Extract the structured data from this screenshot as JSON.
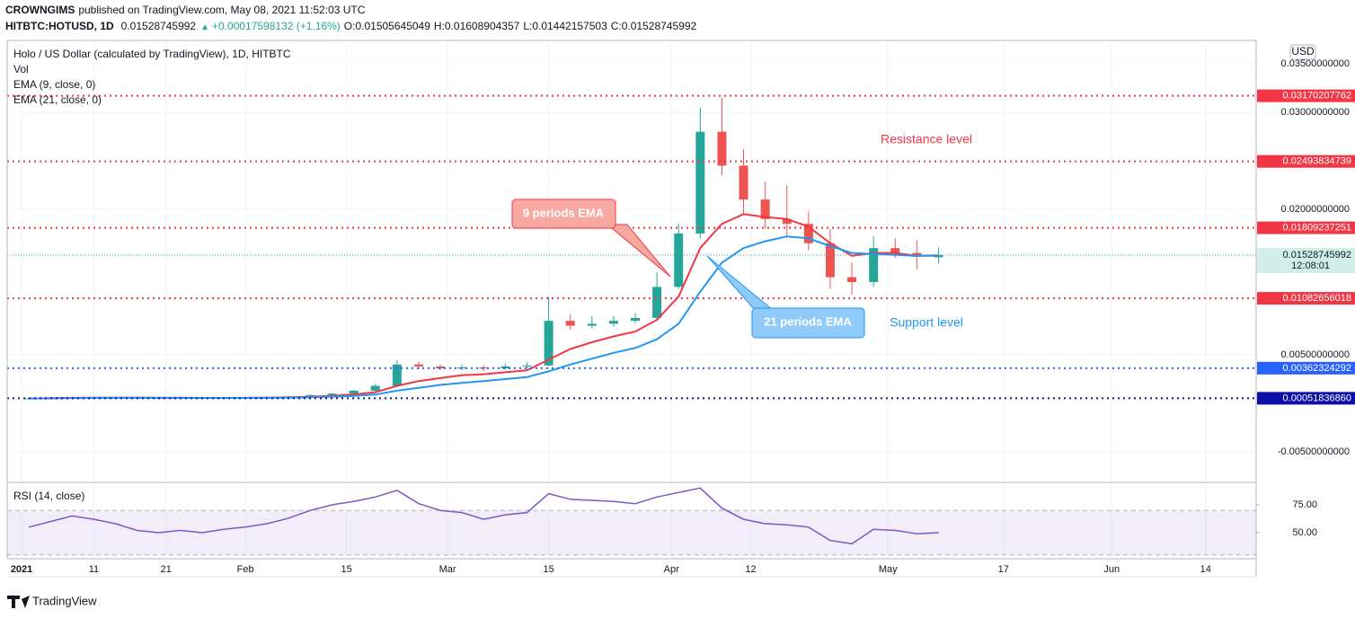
{
  "header": {
    "author": "CROWNGIMS",
    "published": "published on TradingView.com, May 08, 2021 11:52:03 UTC",
    "symbol": "HITBTC:HOTUSD, 1D",
    "last": "0.01528745992",
    "arrow": "▲",
    "change": "+0.00017598132 (+1.16%)",
    "open": "O:0.01505645049",
    "high": "H:0.01608904357",
    "low": "L:0.01442157503",
    "close": "C:0.01528745992"
  },
  "logo": "TradingView",
  "chart_data": [
    {
      "type": "candlestick",
      "title": "Holo / US Dollar (calculated by TradingView), 1D, HITBTC",
      "volume_label": "Vol",
      "currency": "USD",
      "countdown": "12:08:01",
      "last_price": 0.01528745992,
      "x": [
        "2021-01-02",
        "2021-01-05",
        "2021-01-08",
        "2021-01-11",
        "2021-01-14",
        "2021-01-17",
        "2021-01-20",
        "2021-01-23",
        "2021-01-26",
        "2021-01-29",
        "2021-02-01",
        "2021-02-04",
        "2021-02-07",
        "2021-02-10",
        "2021-02-13",
        "2021-02-16",
        "2021-02-19",
        "2021-02-22",
        "2021-02-25",
        "2021-02-28",
        "2021-03-03",
        "2021-03-06",
        "2021-03-09",
        "2021-03-12",
        "2021-03-15",
        "2021-03-18",
        "2021-03-21",
        "2021-03-24",
        "2021-03-27",
        "2021-03-30",
        "2021-04-02",
        "2021-04-05",
        "2021-04-08",
        "2021-04-11",
        "2021-04-14",
        "2021-04-17",
        "2021-04-20",
        "2021-04-23",
        "2021-04-26",
        "2021-04-29",
        "2021-05-02",
        "2021-05-05",
        "2021-05-08"
      ],
      "open": [
        0.0005,
        0.00052,
        0.00058,
        0.00062,
        0.0006,
        0.00058,
        0.00055,
        0.00054,
        0.00055,
        0.00054,
        0.00056,
        0.00058,
        0.00062,
        0.0007,
        0.00085,
        0.001,
        0.0013,
        0.0018,
        0.004,
        0.0038,
        0.0036,
        0.0037,
        0.0036,
        0.0038,
        0.0039,
        0.0085,
        0.008,
        0.0082,
        0.0085,
        0.0088,
        0.012,
        0.0175,
        0.028,
        0.0245,
        0.021,
        0.019,
        0.0185,
        0.0165,
        0.013,
        0.0125,
        0.016,
        0.0155,
        0.01505645049
      ],
      "high": [
        0.00056,
        0.00062,
        0.00066,
        0.00065,
        0.00062,
        0.0006,
        0.00058,
        0.00058,
        0.00057,
        0.00059,
        0.00061,
        0.00066,
        0.00074,
        0.0009,
        0.00108,
        0.0014,
        0.002,
        0.0045,
        0.0043,
        0.004,
        0.004,
        0.0039,
        0.0041,
        0.0042,
        0.011,
        0.0092,
        0.009,
        0.009,
        0.0093,
        0.0135,
        0.0185,
        0.0305,
        0.0315,
        0.0262,
        0.0228,
        0.0225,
        0.0198,
        0.018,
        0.0145,
        0.0172,
        0.017,
        0.0168,
        0.01608904357
      ],
      "low": [
        0.00048,
        0.0005,
        0.00055,
        0.00057,
        0.00055,
        0.00052,
        0.00051,
        0.00052,
        0.00051,
        0.00052,
        0.00054,
        0.00056,
        0.0006,
        0.00068,
        0.00082,
        0.00095,
        0.0012,
        0.0017,
        0.0035,
        0.0034,
        0.0034,
        0.0033,
        0.0035,
        0.0036,
        0.0038,
        0.0076,
        0.0077,
        0.0079,
        0.0083,
        0.0086,
        0.0118,
        0.017,
        0.0235,
        0.0195,
        0.018,
        0.0172,
        0.0158,
        0.0118,
        0.0112,
        0.012,
        0.015,
        0.0138,
        0.01442157503
      ],
      "close": [
        0.00052,
        0.00058,
        0.00062,
        0.0006,
        0.00058,
        0.00055,
        0.00054,
        0.00055,
        0.00054,
        0.00056,
        0.00058,
        0.00062,
        0.0007,
        0.00085,
        0.001,
        0.0013,
        0.0018,
        0.004,
        0.0038,
        0.0036,
        0.0037,
        0.0036,
        0.0038,
        0.0039,
        0.0085,
        0.008,
        0.0082,
        0.0085,
        0.0088,
        0.012,
        0.0175,
        0.028,
        0.0245,
        0.021,
        0.019,
        0.0185,
        0.0165,
        0.013,
        0.0125,
        0.016,
        0.0155,
        0.0151,
        0.01528745992
      ],
      "up_color": "#26a69a",
      "down_color": "#ef5350",
      "series": [
        {
          "name": "EMA (9, close, 0)",
          "color": "#f23645",
          "values": [
            0.0005,
            0.00053,
            0.00056,
            0.00058,
            0.00058,
            0.00057,
            0.00056,
            0.00056,
            0.00055,
            0.00055,
            0.00056,
            0.00058,
            0.00061,
            0.00068,
            0.00078,
            0.00092,
            0.00115,
            0.0018,
            0.0023,
            0.0026,
            0.0029,
            0.003,
            0.0032,
            0.0034,
            0.0045,
            0.0056,
            0.0063,
            0.0069,
            0.0074,
            0.0086,
            0.011,
            0.016,
            0.0185,
            0.0195,
            0.0192,
            0.019,
            0.0182,
            0.0165,
            0.0152,
            0.0155,
            0.0155,
            0.0152,
            0.0152
          ]
        },
        {
          "name": "EMA (21, close, 0)",
          "color": "#2196f3",
          "values": [
            0.0005,
            0.00051,
            0.00053,
            0.00055,
            0.00056,
            0.00056,
            0.00056,
            0.00056,
            0.00055,
            0.00055,
            0.00055,
            0.00056,
            0.00058,
            0.00062,
            0.00068,
            0.00076,
            0.0009,
            0.0013,
            0.0016,
            0.0019,
            0.0021,
            0.0023,
            0.0025,
            0.0027,
            0.0033,
            0.004,
            0.0046,
            0.0052,
            0.0057,
            0.0066,
            0.0082,
            0.0115,
            0.0145,
            0.016,
            0.0167,
            0.0172,
            0.017,
            0.0162,
            0.0155,
            0.0154,
            0.0153,
            0.0152,
            0.01525
          ]
        }
      ],
      "levels": [
        {
          "value": 0.03170207762,
          "color": "#f23645"
        },
        {
          "value": 0.02493834739,
          "color": "#f23645"
        },
        {
          "value": 0.01809237251,
          "color": "#f23645"
        },
        {
          "value": 0.01082656018,
          "color": "#f23645"
        },
        {
          "value": 0.00362324292,
          "color": "#2962ff"
        },
        {
          "value": 0.0005183686,
          "label": "0.00051836860",
          "color": "#0d0da8"
        }
      ],
      "annotations": [
        "9 periods EMA",
        "21 periods EMA",
        "Resistance level",
        "Support level"
      ],
      "xlim": [
        "2020-12-30",
        "2021-06-21"
      ],
      "xticks": [
        {
          "value": "2021-01-01",
          "label": "2021"
        },
        {
          "value": "2021-01-11",
          "label": "11"
        },
        {
          "value": "2021-01-21",
          "label": "21"
        },
        {
          "value": "2021-02-01",
          "label": "Feb"
        },
        {
          "value": "2021-02-15",
          "label": "15"
        },
        {
          "value": "2021-03-01",
          "label": "Mar"
        },
        {
          "value": "2021-03-15",
          "label": "15"
        },
        {
          "value": "2021-04-01",
          "label": "Apr"
        },
        {
          "value": "2021-04-12",
          "label": "12"
        },
        {
          "value": "2021-05-01",
          "label": "May"
        },
        {
          "value": "2021-05-17",
          "label": "17"
        },
        {
          "value": "2021-06-01",
          "label": "Jun"
        },
        {
          "value": "2021-06-14",
          "label": "14"
        }
      ],
      "ylim": [
        -0.00815,
        0.03741
      ],
      "yticks": [
        {
          "value": 0.035,
          "label": "0.03500000000"
        },
        {
          "value": 0.03,
          "label": "0.03000000000"
        },
        {
          "value": 0.02,
          "label": "0.02000000000"
        },
        {
          "value": 0.005,
          "label": "0.00500000000"
        },
        {
          "value": -0.005,
          "label": "-0.00500000000"
        }
      ],
      "grid": true
    },
    {
      "type": "line",
      "x": [
        "2021-01-02",
        "2021-01-05",
        "2021-01-08",
        "2021-01-11",
        "2021-01-14",
        "2021-01-17",
        "2021-01-20",
        "2021-01-23",
        "2021-01-26",
        "2021-01-29",
        "2021-02-01",
        "2021-02-04",
        "2021-02-07",
        "2021-02-10",
        "2021-02-13",
        "2021-02-16",
        "2021-02-19",
        "2021-02-22",
        "2021-02-25",
        "2021-02-28",
        "2021-03-03",
        "2021-03-06",
        "2021-03-09",
        "2021-03-12",
        "2021-03-15",
        "2021-03-18",
        "2021-03-21",
        "2021-03-24",
        "2021-03-27",
        "2021-03-30",
        "2021-04-02",
        "2021-04-05",
        "2021-04-08",
        "2021-04-11",
        "2021-04-14",
        "2021-04-17",
        "2021-04-20",
        "2021-04-23",
        "2021-04-26",
        "2021-04-29",
        "2021-05-02",
        "2021-05-05",
        "2021-05-08"
      ],
      "series": [
        {
          "name": "RSI (14, close)",
          "color": "#7e57c2",
          "values": [
            55,
            60,
            65,
            62,
            58,
            52,
            50,
            52,
            50,
            53,
            55,
            58,
            63,
            70,
            75,
            78,
            82,
            88,
            76,
            70,
            68,
            62,
            66,
            68,
            85,
            80,
            79,
            78,
            76,
            82,
            86,
            90,
            72,
            62,
            58,
            57,
            55,
            43,
            40,
            53,
            52,
            49,
            50
          ]
        }
      ],
      "bands": [
        30,
        70
      ],
      "band_color": "#7e57c2",
      "xlim": [
        "2020-12-30",
        "2021-06-21"
      ],
      "ylim": [
        26.6,
        92.7
      ],
      "yticks": [
        {
          "value": 75,
          "label": "75.00"
        },
        {
          "value": 50,
          "label": "50.00"
        }
      ]
    }
  ]
}
